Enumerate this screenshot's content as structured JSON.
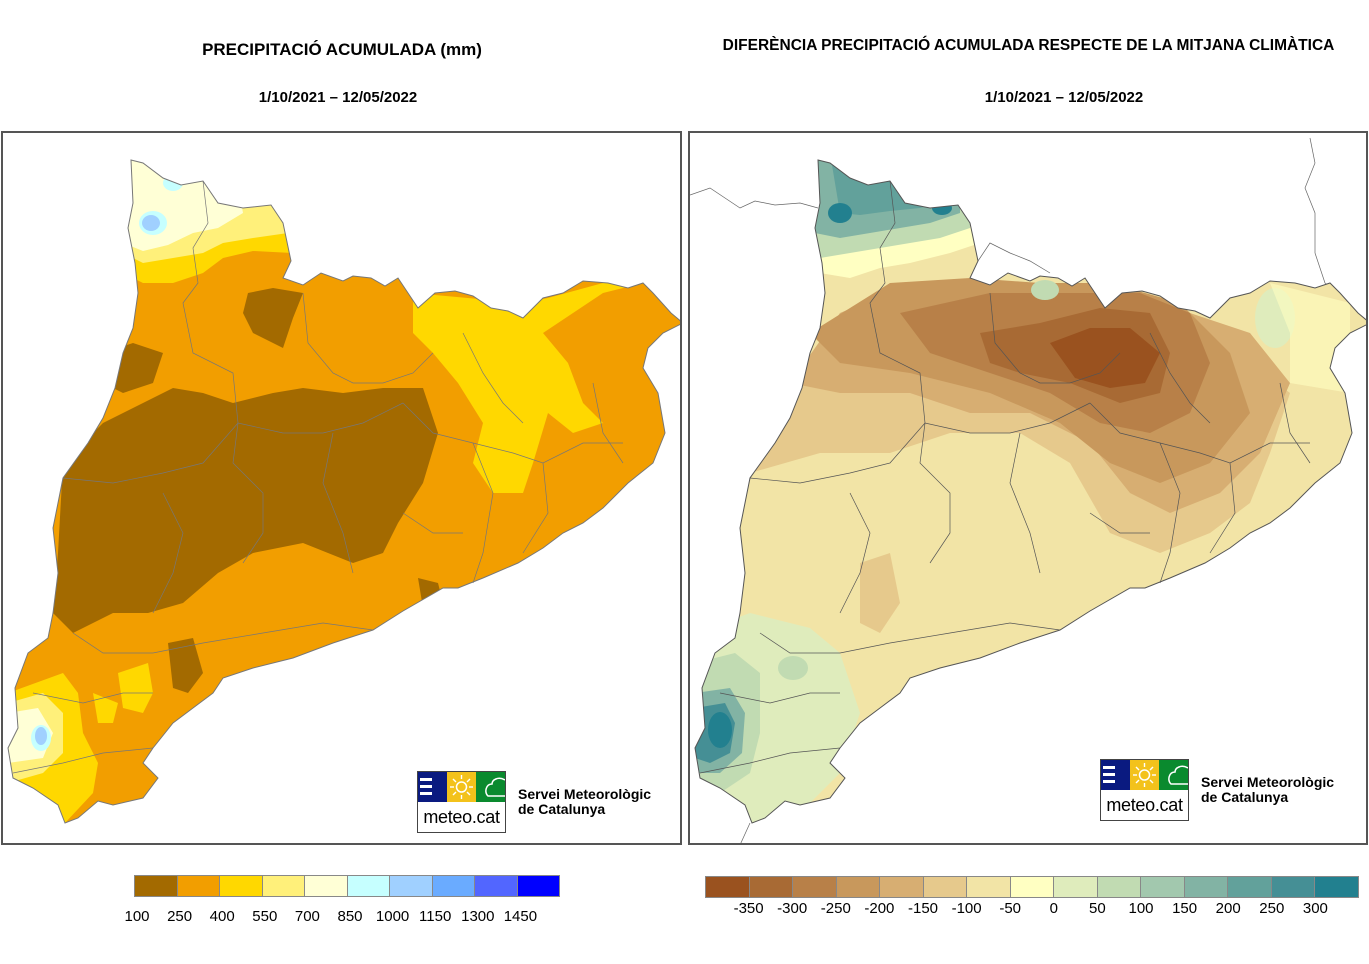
{
  "left_panel": {
    "title": "PRECIPITACIÓ ACUMULADA (mm)",
    "date_range": "1/10/2021  – 12/05/2022",
    "logo": {
      "brand": "meteo.cat",
      "line1": "Servei Meteorològic",
      "line2": "de Catalunya"
    },
    "legend": {
      "colors": [
        "#a36a00",
        "#f29e00",
        "#ffd800",
        "#fff07a",
        "#ffffd6",
        "#c6ffff",
        "#a0d0ff",
        "#6aabff",
        "#5266ff",
        "#0000ff"
      ],
      "ticks": [
        "100",
        "250",
        "400",
        "550",
        "700",
        "850",
        "1000",
        "1150",
        "1300",
        "1450"
      ]
    }
  },
  "right_panel": {
    "title": "DIFERÈNCIA PRECIPITACIÓ ACUMULADA RESPECTE DE LA MITJANA CLIMÀTICA",
    "date_range": "1/10/2021  – 12/05/2022",
    "logo": {
      "brand": "meteo.cat",
      "line1": "Servei Meteorològic",
      "line2": "de Catalunya"
    },
    "legend": {
      "colors": [
        "#9a521f",
        "#a86a34",
        "#b88048",
        "#c8985c",
        "#d7ae72",
        "#e6c98c",
        "#f2e4a6",
        "#ffffc2",
        "#dfecbc",
        "#c1dbb2",
        "#a2c8ae",
        "#82b3a4",
        "#62a19b",
        "#458f95",
        "#22808f"
      ],
      "ticks": [
        "-350",
        "-300",
        "-250",
        "-200",
        "-150",
        "-100",
        "-50",
        "0",
        "50",
        "100",
        "150",
        "200",
        "250",
        "300"
      ]
    }
  },
  "chart_data": [
    {
      "type": "heatmap",
      "title": "PRECIPITACIÓ ACUMULADA (mm)",
      "subtitle": "1/10/2021  – 12/05/2022",
      "legend_ticks": [
        100,
        250,
        400,
        550,
        700,
        850,
        1000,
        1150,
        1300,
        1450
      ],
      "units": "mm"
    },
    {
      "type": "heatmap",
      "title": "DIFERÈNCIA PRECIPITACIÓ ACUMULADA RESPECTE DE LA MITJANA CLIMÀTICA",
      "subtitle": "1/10/2021  – 12/05/2022",
      "legend_ticks": [
        -350,
        -300,
        -250,
        -200,
        -150,
        -100,
        -50,
        0,
        50,
        100,
        150,
        200,
        250,
        300
      ],
      "units": "mm"
    }
  ]
}
